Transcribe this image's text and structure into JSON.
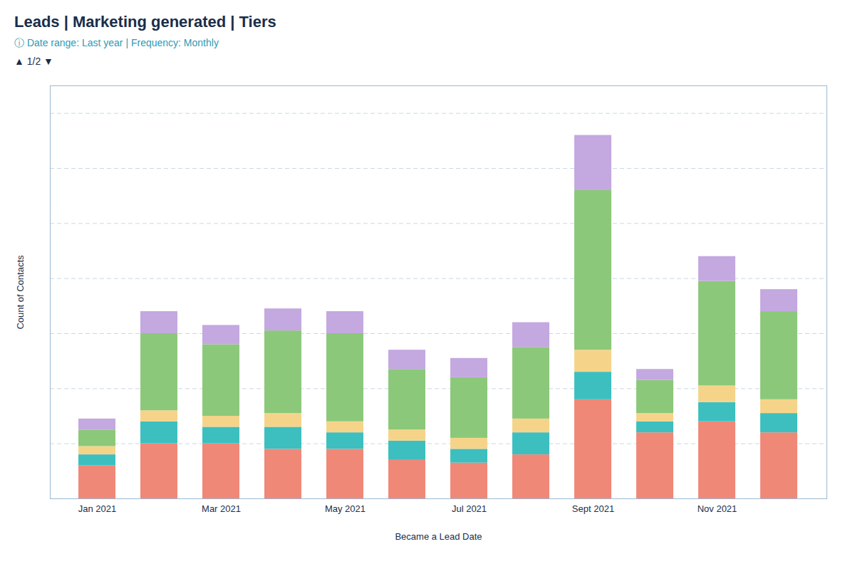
{
  "chart_data": {
    "type": "bar",
    "stacked": true,
    "title": "Leads | Marketing generated | Tiers",
    "subtitle": "ⓘ Date range: Last year | Frequency: Monthly",
    "annotations": [
      "▲ 1/2 ▼"
    ],
    "xlabel": "Became a Lead Date",
    "ylabel": "Count of Contacts",
    "categories": [
      "Jan 2021",
      null,
      "Mar 2021",
      null,
      "May 2021",
      null,
      "Jul 2021",
      null,
      "Sept 2021",
      null,
      "Nov 2021",
      null
    ],
    "series": [
      {
        "color": "#F08878",
        "values": [
          12,
          20,
          20,
          18,
          18,
          14,
          13,
          16,
          36,
          24,
          28,
          24
        ]
      },
      {
        "color": "#3DBFBF",
        "values": [
          4,
          8,
          6,
          8,
          6,
          7,
          5,
          8,
          10,
          4,
          7,
          7
        ]
      },
      {
        "color": "#F5D48A",
        "values": [
          3,
          4,
          4,
          5,
          4,
          4,
          4,
          5,
          8,
          3,
          6,
          5
        ]
      },
      {
        "color": "#8CC87A",
        "values": [
          6,
          28,
          26,
          30,
          32,
          22,
          22,
          26,
          58,
          12,
          38,
          32
        ]
      },
      {
        "color": "#C4A8E0",
        "values": [
          4,
          8,
          7,
          8,
          8,
          7,
          7,
          9,
          20,
          4,
          9,
          8
        ]
      }
    ],
    "ylim": [
      0,
      150
    ],
    "yticks": [
      20,
      40,
      60,
      80,
      100,
      120,
      140
    ],
    "grid": true,
    "tick_labels": "x"
  }
}
